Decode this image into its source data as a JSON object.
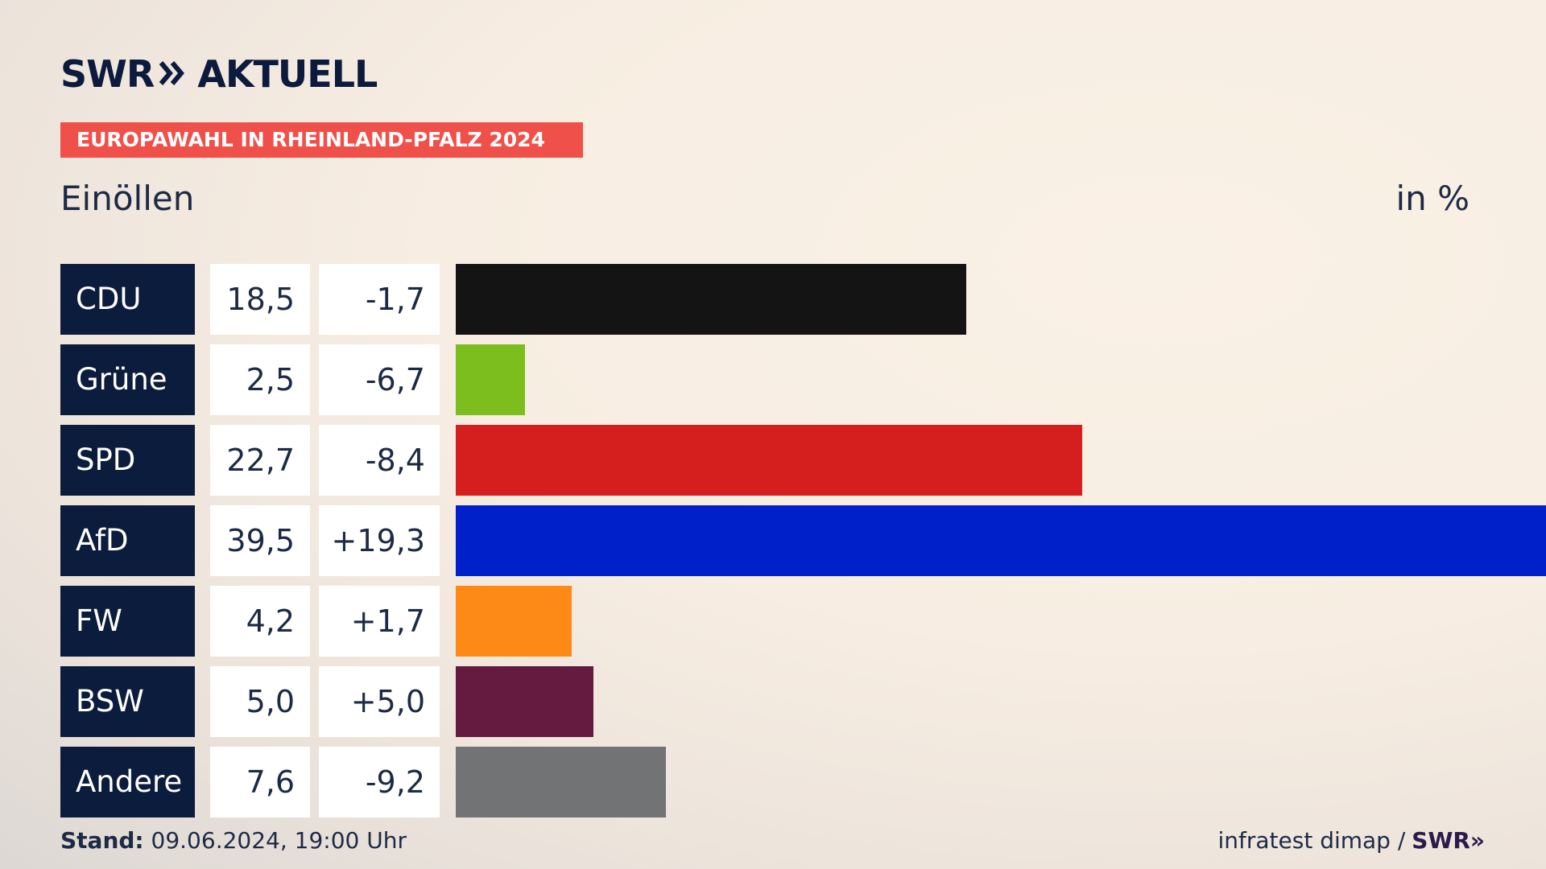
{
  "header": {
    "logo_left": "SWR",
    "logo_chevrons": "»",
    "logo_right": "AKTUELL",
    "badge": "EUROPAWAHL IN RHEINLAND-PFALZ 2024",
    "region": "Einöllen",
    "unit": "in %"
  },
  "colors": {
    "badge": "#f0504a",
    "party_box": "#0c1c3d"
  },
  "chart_data": {
    "type": "bar",
    "orientation": "horizontal",
    "categories": [
      "CDU",
      "Grüne",
      "SPD",
      "AfD",
      "FW",
      "BSW",
      "Andere"
    ],
    "values": [
      18.5,
      2.5,
      22.7,
      39.5,
      4.2,
      5.0,
      7.6
    ],
    "value_labels": [
      "18,5",
      "2,5",
      "22,7",
      "39,5",
      "4,2",
      "5,0",
      "7,6"
    ],
    "diff_labels": [
      "-1,7",
      "-6,7",
      "-8,4",
      "+19,3",
      "+1,7",
      "+5,0",
      "-9,2"
    ],
    "bar_colors": [
      "#141414",
      "#7bbe1d",
      "#d51f1f",
      "#0021c9",
      "#fd8a16",
      "#651a3f",
      "#717374"
    ],
    "xlim": [
      0,
      39.5
    ],
    "grid": false,
    "legend": "none"
  },
  "footer": {
    "stand_label": "Stand:",
    "stand_value": "09.06.2024, 19:00 Uhr",
    "source": "infratest dimap /",
    "source_logo": "SWR»"
  }
}
